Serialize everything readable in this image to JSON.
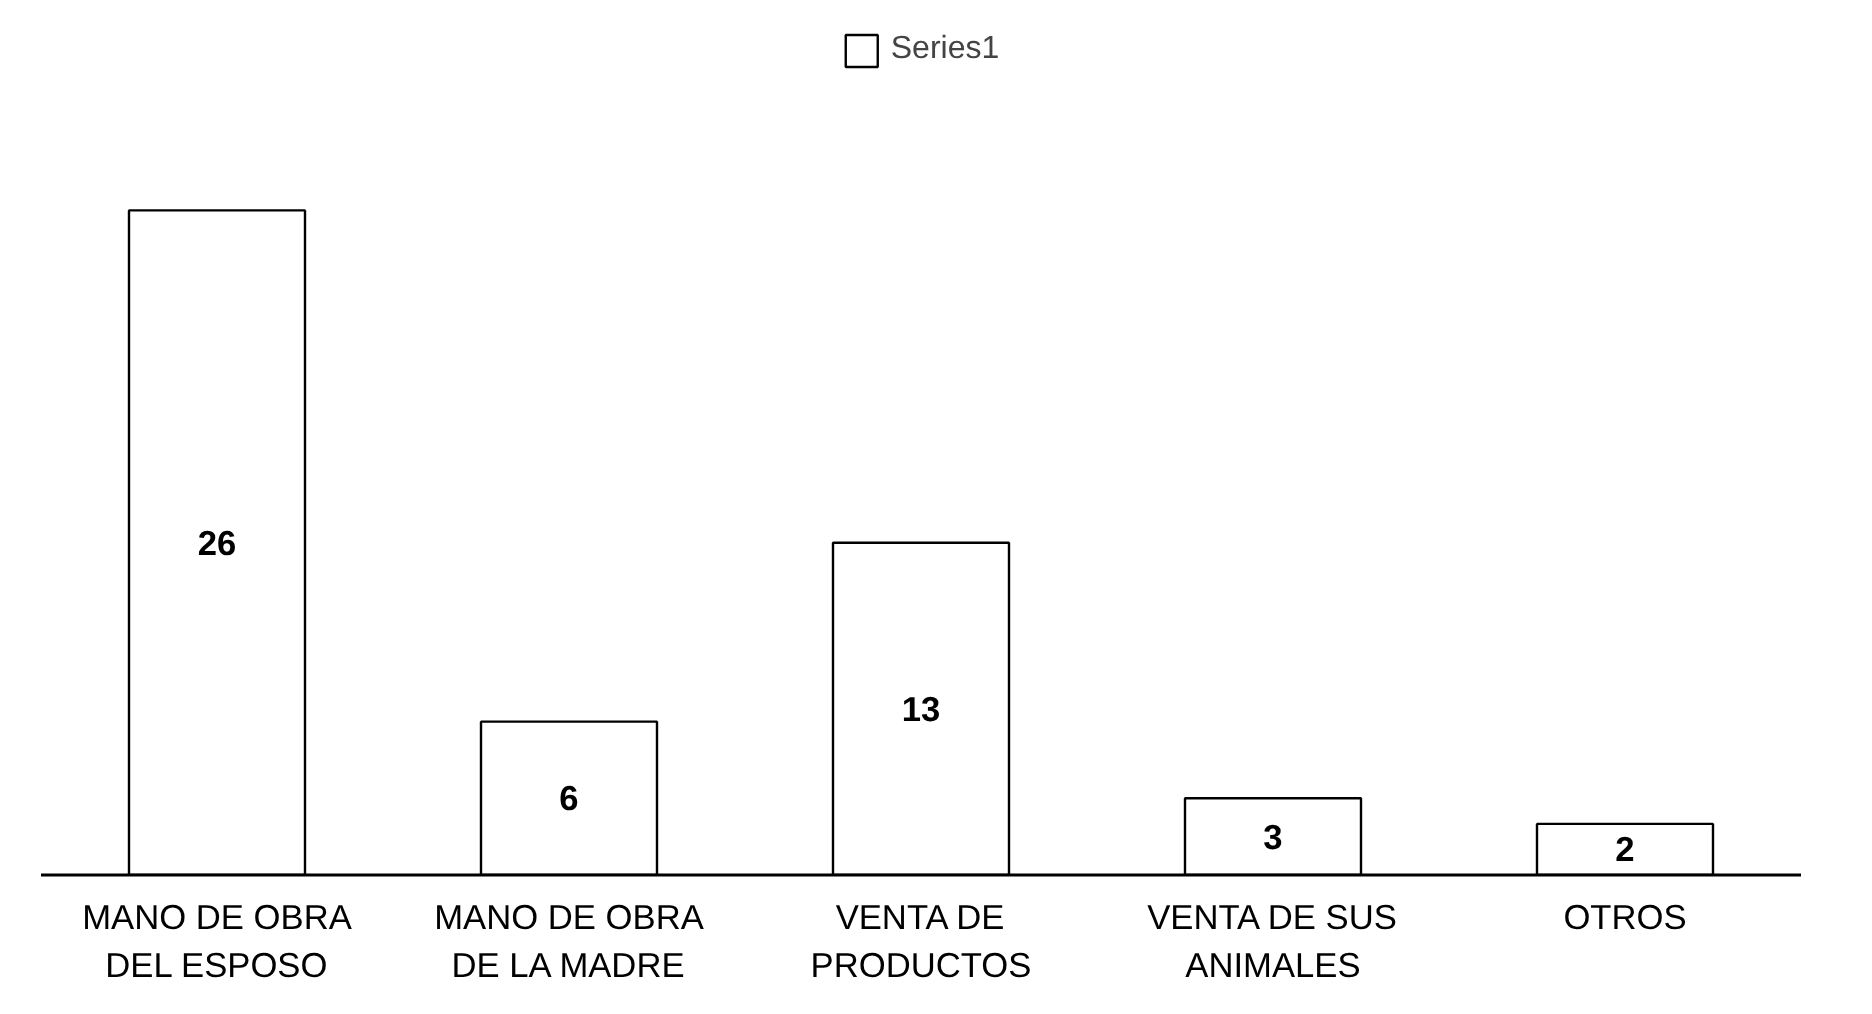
{
  "chart_data": {
    "type": "bar",
    "categories": [
      "MANO DE OBRA DEL ESPOSO",
      "MANO DE OBRA DE LA MADRE",
      "VENTA DE PRODUCTOS",
      "VENTA DE SUS ANIMALES",
      "OTROS"
    ],
    "series": [
      {
        "name": "Series1",
        "color": "#ffffff",
        "values": [
          26,
          6,
          13,
          3,
          2
        ]
      }
    ],
    "data_labels": true,
    "legend": "top"
  }
}
